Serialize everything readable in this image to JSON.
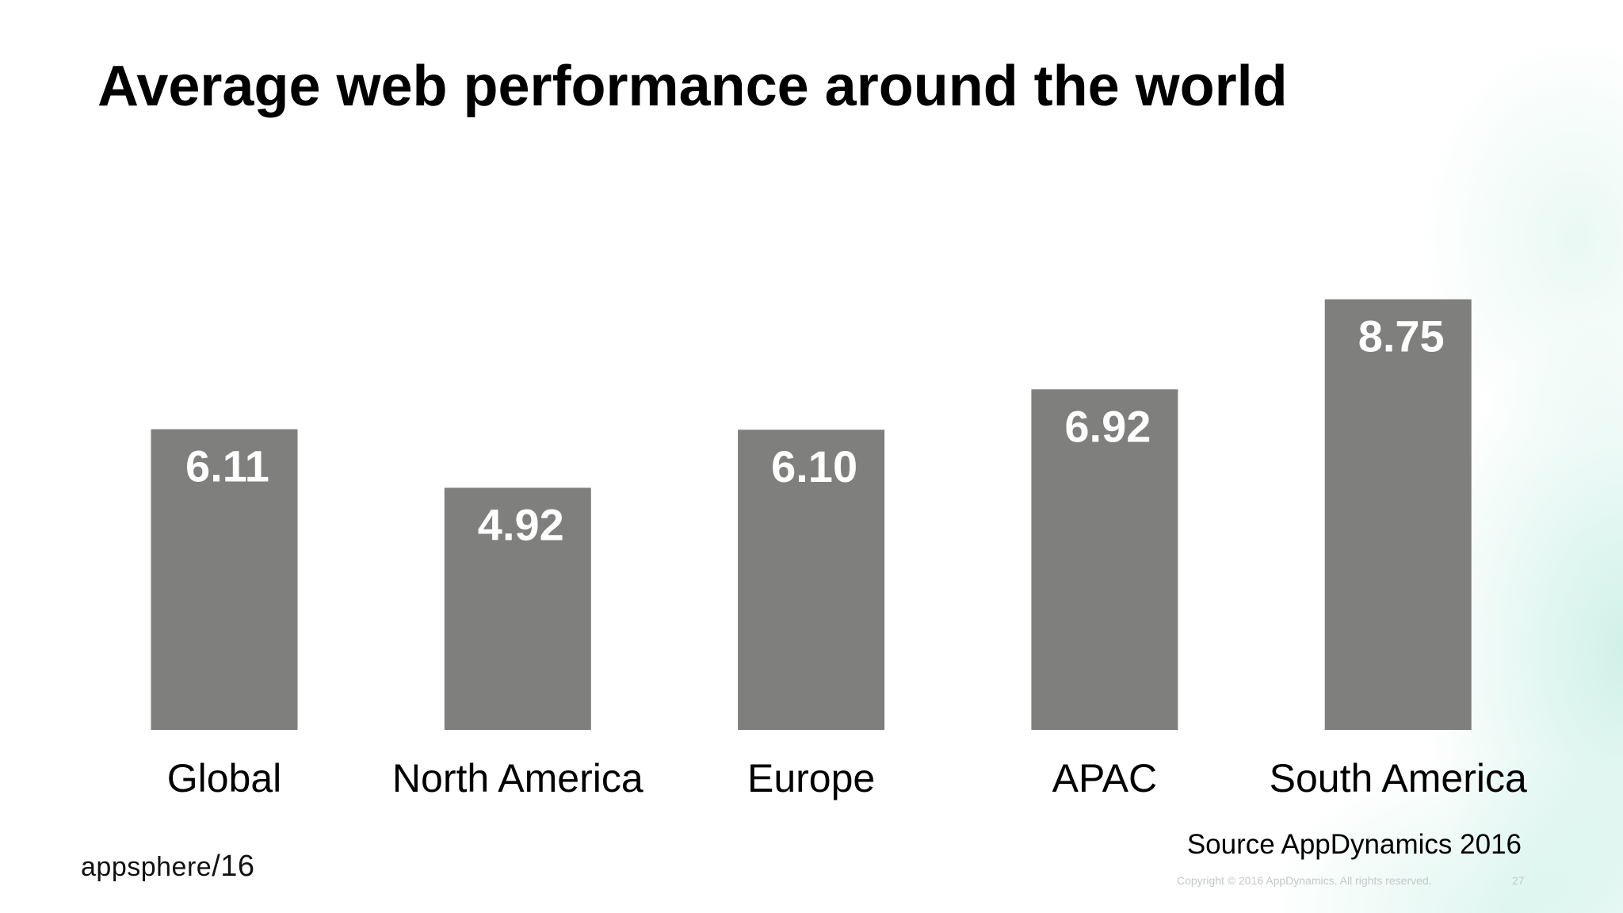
{
  "chart_data": {
    "type": "bar",
    "title": "Average web performance around the world",
    "categories": [
      "Global",
      "North America",
      "Europe",
      "APAC",
      "South America"
    ],
    "values": [
      6.11,
      4.92,
      6.1,
      6.92,
      8.75
    ],
    "value_labels": [
      "6.11",
      "4.92",
      "6.10",
      "6.92",
      "8.75"
    ],
    "bar_color": "#7f807e",
    "ylim": [
      0,
      9
    ],
    "grid": false,
    "axes_visible": false
  },
  "footer": {
    "source": "Source AppDynamics 2016",
    "copyright": "Copyright © 2016 AppDynamics. All rights reserved.",
    "page_number": "27",
    "logo_text": "appsphere/16"
  }
}
